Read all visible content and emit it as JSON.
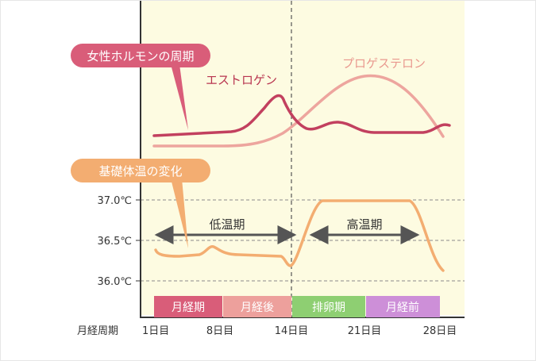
{
  "callouts": {
    "hormone": "女性ホルモンの周期",
    "temperature": "基礎体温の変化"
  },
  "hormones": {
    "estrogen": "エストロゲン",
    "progesterone": "プロゲステロン"
  },
  "temperature_axis": {
    "ticks": [
      "37.0℃",
      "36.5℃",
      "36.0℃"
    ]
  },
  "phases": {
    "low": "低温期",
    "high": "高温期"
  },
  "cycle": {
    "label": "月経周期",
    "segments": [
      "月経期",
      "月経後",
      "排卵期",
      "月経前"
    ],
    "days": [
      "1日目",
      "8日目",
      "14日目",
      "21日目",
      "28日目"
    ]
  },
  "colors": {
    "estrogen": "#c2405f",
    "progesterone": "#eda59e",
    "temperature": "#f3ad71",
    "menstruation": "#d95d79",
    "post_menstruation": "#eda09c",
    "ovulation": "#8ecf72",
    "pre_menstruation": "#cd8fd8",
    "plot_background": "#fdfbe1"
  }
}
